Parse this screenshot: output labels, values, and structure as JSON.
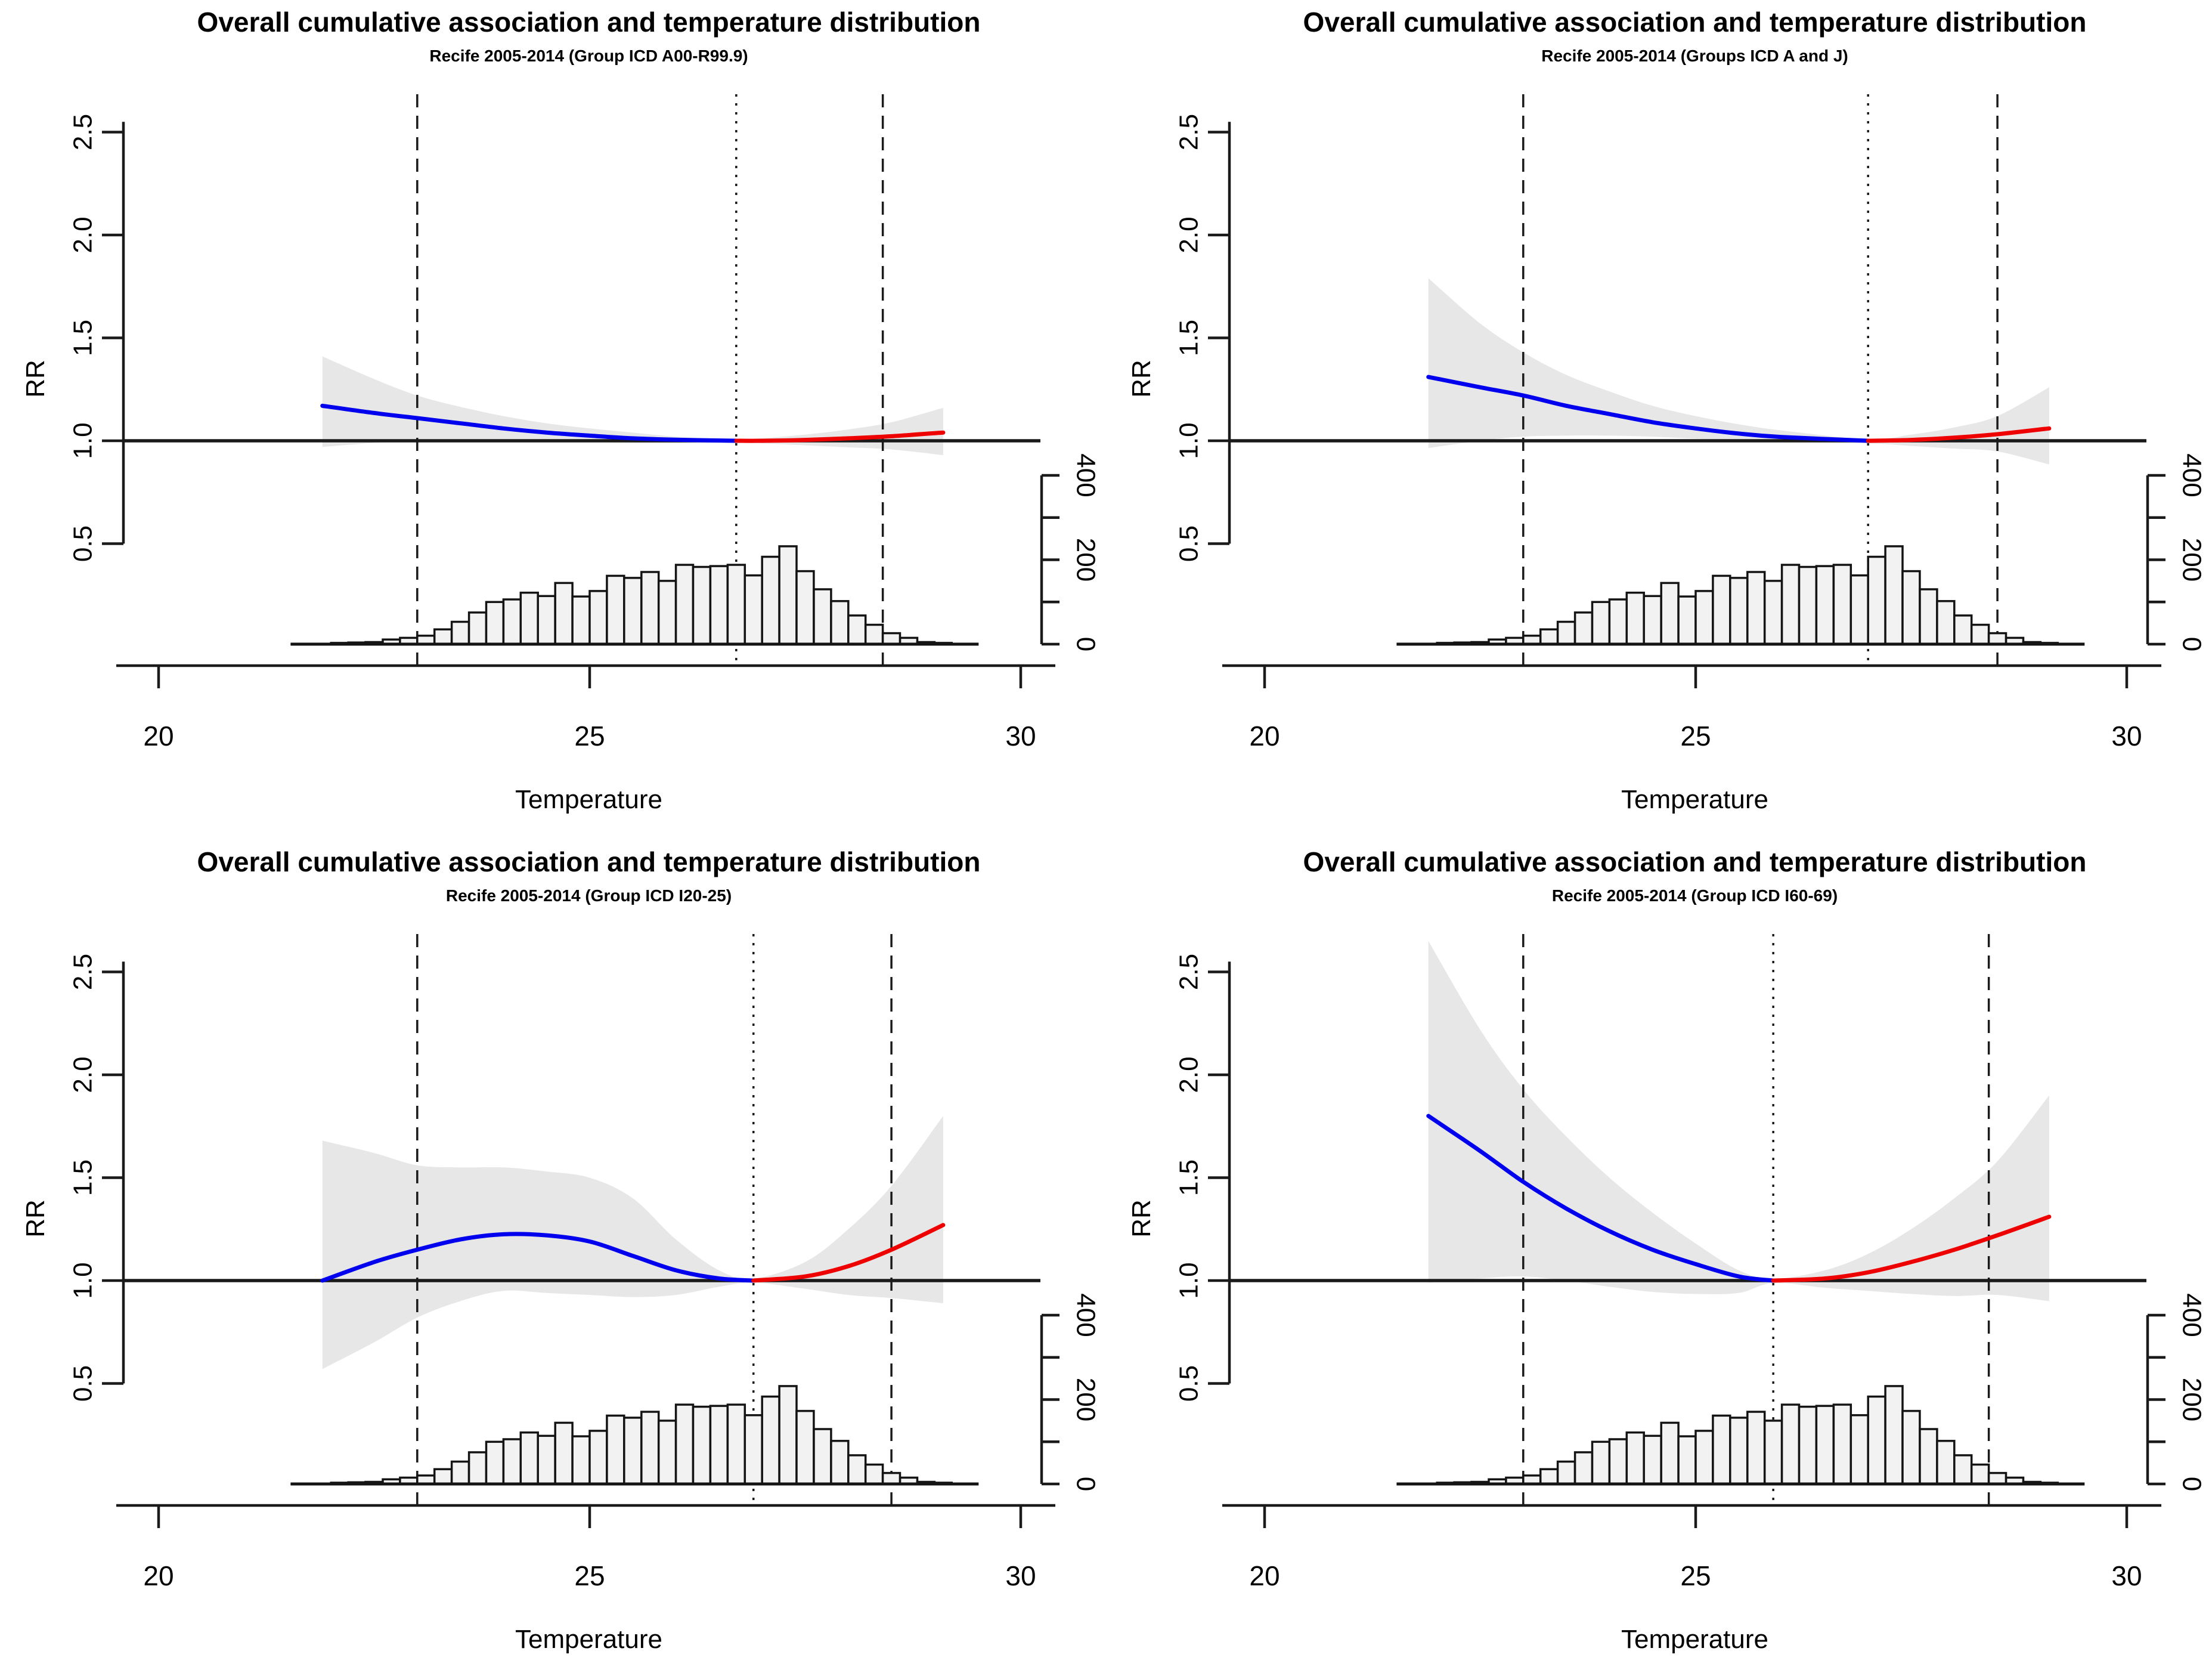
{
  "page": {
    "background": "#ffffff"
  },
  "colors": {
    "cold_curve": "#0000ee",
    "heat_curve": "#ee0000",
    "ci_band": "#e7e7e7",
    "reference_line": "#1a1a1a",
    "axis": "#1a1a1a",
    "vline": "#1a1a1a",
    "hist_fill": "#f2f2f2",
    "hist_stroke": "#141414"
  },
  "chart_data": {
    "type": "line",
    "layout": "2x2-grid",
    "axes": {
      "xlabel": "Temperature",
      "ylabel": "RR",
      "xlim": [
        19.5,
        30.5
      ],
      "ylim_rr": [
        0.45,
        2.6
      ],
      "x_tick_values": [
        20,
        25,
        30
      ],
      "x_tick_labels": [
        "20",
        "25",
        "30"
      ],
      "y_tick_values": [
        0.5,
        1.0,
        1.5,
        2.0,
        2.5
      ],
      "y_tick_labels": [
        "0.5",
        "1.0",
        "1.5",
        "2.0",
        "2.5"
      ],
      "grid": false
    },
    "histogram": {
      "shared_across_panels": true,
      "bin_start": 21.6,
      "bin_width": 0.2,
      "counts": [
        1,
        1,
        3,
        4,
        5,
        11,
        15,
        20,
        35,
        53,
        75,
        100,
        106,
        122,
        114,
        145,
        113,
        126,
        162,
        157,
        171,
        150,
        188,
        183,
        185,
        188,
        163,
        207,
        232,
        173,
        130,
        102,
        68,
        46,
        26,
        15,
        5,
        3
      ],
      "axis_tick_values": [
        0,
        100,
        200,
        300,
        400
      ],
      "axis_label_values": [
        0,
        200,
        400
      ],
      "axis_labels": [
        "0",
        "200",
        "400"
      ],
      "axis_max": 400
    },
    "panels": [
      {
        "title": "Overall cumulative association and temperature distribution",
        "subtitle": "Recife 2005-2014 (Group ICD A00-R99.9)",
        "reference_rr": 1.0,
        "mmt": 26.7,
        "percentile_lines": [
          23.0,
          28.4
        ],
        "curve": {
          "x": [
            21.9,
            22.5,
            23.0,
            23.5,
            24.0,
            24.5,
            25.0,
            25.5,
            26.0,
            26.7,
            27.0,
            27.5,
            28.0,
            28.5,
            29.1
          ],
          "rr": [
            1.17,
            1.135,
            1.11,
            1.085,
            1.06,
            1.04,
            1.025,
            1.012,
            1.005,
            1.0,
            1.0,
            1.004,
            1.012,
            1.022,
            1.04
          ],
          "upper": [
            1.41,
            1.3,
            1.22,
            1.165,
            1.12,
            1.085,
            1.06,
            1.04,
            1.02,
            1.005,
            1.012,
            1.03,
            1.055,
            1.09,
            1.16
          ],
          "lower": [
            0.97,
            0.99,
            1.0,
            1.005,
            1.005,
            1.0,
            0.995,
            0.99,
            0.99,
            0.995,
            0.988,
            0.978,
            0.968,
            0.958,
            0.93
          ]
        }
      },
      {
        "title": "Overall cumulative association and temperature distribution",
        "subtitle": "Recife 2005-2014 (Groups ICD A and J)",
        "reference_rr": 1.0,
        "mmt": 27.0,
        "percentile_lines": [
          23.0,
          28.5
        ],
        "curve": {
          "x": [
            21.9,
            22.5,
            23.0,
            23.5,
            24.0,
            24.5,
            25.0,
            25.5,
            26.0,
            27.0,
            27.5,
            28.0,
            28.5,
            29.1
          ],
          "rr": [
            1.31,
            1.26,
            1.22,
            1.17,
            1.13,
            1.09,
            1.06,
            1.035,
            1.018,
            1.0,
            1.004,
            1.015,
            1.032,
            1.06
          ],
          "upper": [
            1.79,
            1.57,
            1.43,
            1.32,
            1.24,
            1.17,
            1.12,
            1.08,
            1.05,
            1.008,
            1.03,
            1.065,
            1.12,
            1.26
          ],
          "lower": [
            0.965,
            1.0,
            1.02,
            1.025,
            1.025,
            1.02,
            1.01,
            1.0,
            0.995,
            0.988,
            0.975,
            0.962,
            0.948,
            0.885
          ]
        }
      },
      {
        "title": "Overall cumulative association and temperature distribution",
        "subtitle": "Recife 2005-2014 (Group ICD I20-25)",
        "reference_rr": 1.0,
        "mmt": 26.9,
        "percentile_lines": [
          23.0,
          28.5
        ],
        "curve": {
          "x": [
            21.9,
            22.5,
            23.0,
            23.5,
            24.0,
            24.5,
            25.0,
            25.5,
            26.0,
            26.5,
            26.9,
            27.5,
            28.0,
            28.5,
            29.1
          ],
          "rr": [
            1.0,
            1.09,
            1.15,
            1.2,
            1.225,
            1.22,
            1.19,
            1.12,
            1.05,
            1.01,
            1.0,
            1.02,
            1.07,
            1.15,
            1.27
          ],
          "upper": [
            1.68,
            1.62,
            1.56,
            1.55,
            1.55,
            1.53,
            1.5,
            1.4,
            1.2,
            1.05,
            1.01,
            1.09,
            1.25,
            1.46,
            1.8
          ],
          "lower": [
            0.57,
            0.7,
            0.82,
            0.9,
            0.95,
            0.94,
            0.93,
            0.92,
            0.93,
            0.97,
            0.99,
            0.96,
            0.93,
            0.915,
            0.89
          ]
        }
      },
      {
        "title": "Overall cumulative association and temperature distribution",
        "subtitle": "Recife 2005-2014 (Group ICD I60-69)",
        "reference_rr": 1.0,
        "mmt": 25.9,
        "percentile_lines": [
          23.0,
          28.4
        ],
        "curve": {
          "x": [
            21.9,
            22.5,
            23.0,
            23.5,
            24.0,
            24.5,
            25.0,
            25.5,
            25.9,
            26.5,
            27.0,
            27.5,
            28.0,
            28.5,
            29.1
          ],
          "rr": [
            1.8,
            1.63,
            1.48,
            1.35,
            1.24,
            1.15,
            1.08,
            1.02,
            1.0,
            1.01,
            1.04,
            1.09,
            1.15,
            1.22,
            1.31
          ],
          "upper": [
            2.65,
            2.22,
            1.93,
            1.7,
            1.5,
            1.33,
            1.18,
            1.05,
            1.008,
            1.05,
            1.13,
            1.25,
            1.4,
            1.58,
            1.9
          ],
          "lower": [
            0.99,
            1.01,
            1.02,
            1.0,
            0.97,
            0.945,
            0.935,
            0.94,
            0.988,
            0.965,
            0.95,
            0.935,
            0.925,
            0.93,
            0.9
          ]
        }
      }
    ]
  }
}
